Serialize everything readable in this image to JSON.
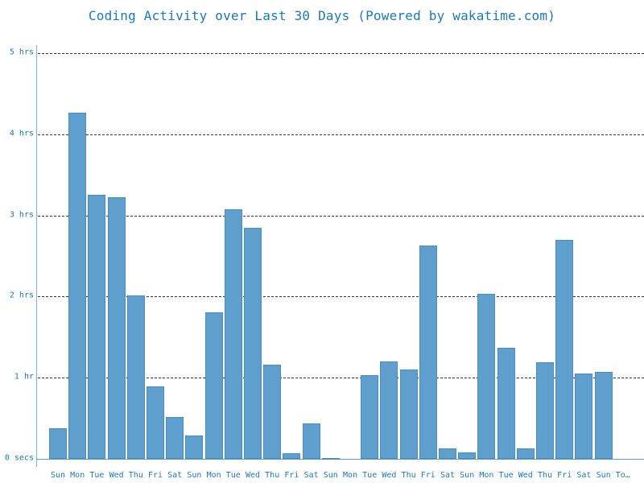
{
  "title": "Coding Activity over Last 30 Days (Powered by wakatime.com)",
  "colors": {
    "bar": "#5f9fcd",
    "text": "#1f77b4",
    "grid": "#333333"
  },
  "y_ticks": [
    {
      "label": "0 secs",
      "value": 0
    },
    {
      "label": "1 hr",
      "value": 1
    },
    {
      "label": "2 hrs",
      "value": 2
    },
    {
      "label": "3 hrs",
      "value": 3
    },
    {
      "label": "4 hrs",
      "value": 4
    },
    {
      "label": "5 hrs",
      "value": 5
    }
  ],
  "chart_data": {
    "type": "bar",
    "title": "Coding Activity over Last 30 Days (Powered by wakatime.com)",
    "xlabel": "",
    "ylabel": "",
    "ylim": [
      0,
      5
    ],
    "yunit": "hours",
    "grid": true,
    "categories": [
      "Sun",
      "Mon",
      "Tue",
      "Wed",
      "Thu",
      "Fri",
      "Sat",
      "Sun",
      "Mon",
      "Tue",
      "Wed",
      "Thu",
      "Fri",
      "Sat",
      "Sun",
      "Mon",
      "Tue",
      "Wed",
      "Thu",
      "Fri",
      "Sat",
      "Sun",
      "Mon",
      "Tue",
      "Wed",
      "Thu",
      "Fri",
      "Sat",
      "Sun",
      "To…"
    ],
    "values": [
      0.38,
      4.27,
      3.25,
      3.22,
      2.01,
      0.89,
      0.52,
      0.29,
      1.81,
      3.08,
      2.85,
      1.16,
      0.07,
      0.44,
      0.01,
      0.0,
      1.03,
      1.2,
      1.1,
      2.63,
      0.13,
      0.08,
      2.03,
      1.37,
      0.13,
      1.19,
      2.7,
      1.05,
      1.07,
      0.0
    ]
  }
}
